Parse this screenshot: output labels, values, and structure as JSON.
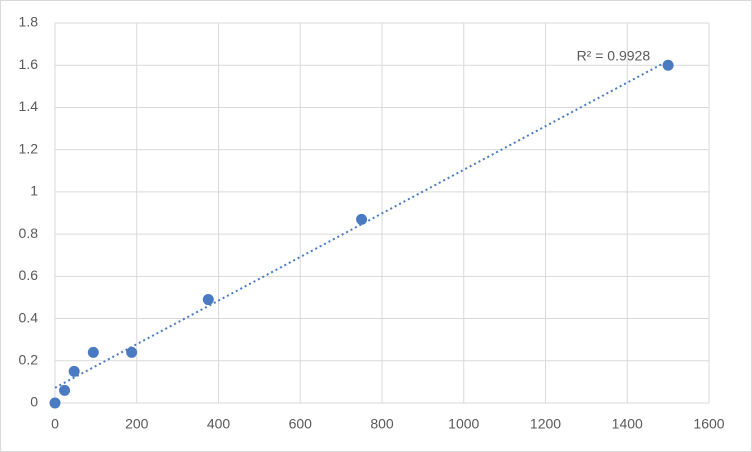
{
  "chart_data": {
    "type": "scatter",
    "x": [
      0,
      23.4,
      46.9,
      93.75,
      187.5,
      375,
      750,
      1500
    ],
    "values": [
      0,
      0.06,
      0.15,
      0.24,
      0.24,
      0.49,
      0.87,
      1.6
    ],
    "color": "#4a7bc2",
    "xlim": [
      0,
      1600
    ],
    "xticks": [
      0,
      200,
      400,
      600,
      800,
      1000,
      1200,
      1400,
      1600
    ],
    "ylim": [
      0,
      1.8
    ],
    "yticks": [
      0,
      0.2,
      0.4,
      0.6,
      0.8,
      1,
      1.2,
      1.4,
      1.6,
      1.8
    ],
    "grid": true,
    "trendline": "linear",
    "annotation": "R² = 0.9928"
  }
}
